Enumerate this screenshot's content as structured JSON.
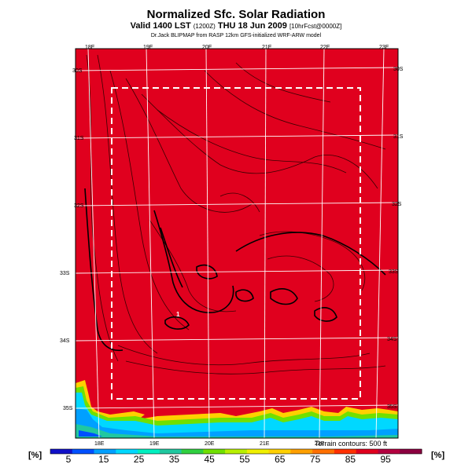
{
  "header": {
    "title": "Normalized Sfc. Solar Radiation",
    "subtitle_main": "Valid 1400 LST",
    "subtitle_utc": "(1200Z)",
    "subtitle_date": "THU 18 Jun 2009",
    "subtitle_tag": "[10hrFcst@0000Z]",
    "byline": "Dr.Jack BLIPMAP from RASP 12km GFS-initialized WRF-ARW model"
  },
  "map": {
    "lon_labels_top": [
      "18E",
      "19E",
      "20E",
      "21E",
      "22E",
      "23E"
    ],
    "lon_labels_bottom": [
      "18E",
      "19E",
      "20E",
      "21E",
      "22E"
    ],
    "lat_labels_right": [
      "30S",
      "31S",
      "32S",
      "33S",
      "34S",
      "35S"
    ],
    "lat_labels_left": [
      "30S",
      "31S",
      "32S",
      "33S",
      "34S",
      "35S"
    ],
    "point_marker": "1",
    "fill_color": "#e0001e",
    "domain_box": "dashed-white",
    "terrain_note": "Terrain contours: 500 ft"
  },
  "colorbar": {
    "unit_left": "[%]",
    "unit_right": "[%]",
    "tick_labels": [
      "5",
      "15",
      "25",
      "35",
      "45",
      "55",
      "65",
      "75",
      "85",
      "95"
    ],
    "colors": [
      "#1010c8",
      "#0050ff",
      "#00a0ff",
      "#00d8ff",
      "#00f0c0",
      "#20c8a0",
      "#30d040",
      "#70e000",
      "#b8f000",
      "#f0f000",
      "#ffd000",
      "#ffa000",
      "#ff7000",
      "#ff3000",
      "#e0001e",
      "#b40040",
      "#8c0040"
    ]
  }
}
